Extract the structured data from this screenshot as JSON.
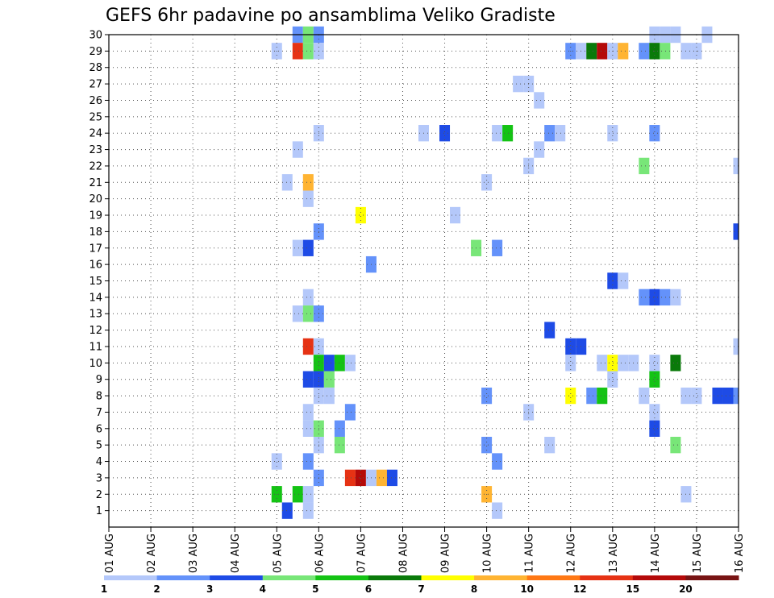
{
  "chart_data": {
    "type": "heatmap",
    "title": "GEFS 6hr padavine po ansamblima Veliko Gradiste",
    "y_ticks": [
      "1",
      "2",
      "3",
      "4",
      "5",
      "6",
      "7",
      "8",
      "9",
      "10",
      "11",
      "12",
      "13",
      "14",
      "15",
      "16",
      "17",
      "18",
      "19",
      "20",
      "21",
      "22",
      "23",
      "24",
      "25",
      "26",
      "27",
      "28",
      "29",
      "30"
    ],
    "x_ticks": [
      "01 AUG",
      "02 AUG",
      "03 AUG",
      "04 AUG",
      "05 AUG",
      "06 AUG",
      "07 AUG",
      "08 AUG",
      "09 AUG",
      "10 AUG",
      "11 AUG",
      "12 AUG",
      "13 AUG",
      "14 AUG",
      "15 AUG",
      "16 AUG"
    ],
    "x_range_days": [
      1,
      16
    ],
    "y_range_members": [
      0,
      30
    ],
    "grid": true,
    "legend_position": "bottom colorbar",
    "colorbar": {
      "tick_labels": [
        "1",
        "2",
        "3",
        "4",
        "5",
        "6",
        "7",
        "8",
        "10",
        "12",
        "15",
        "20"
      ],
      "colors": [
        "#b4c8fa",
        "#6492fa",
        "#1e4be6",
        "#78e678",
        "#14c314",
        "#0a7a0a",
        "#ffff00",
        "#ffb432",
        "#ff7814",
        "#e63214",
        "#b40a0a",
        "#781414"
      ]
    },
    "cells": [
      {
        "member": 30,
        "day": 5.5,
        "level": 2
      },
      {
        "member": 30,
        "day": 5.75,
        "level": 4
      },
      {
        "member": 30,
        "day": 6.0,
        "level": 2
      },
      {
        "member": 30,
        "day": 14.0,
        "level": 1
      },
      {
        "member": 30,
        "day": 14.25,
        "level": 1
      },
      {
        "member": 30,
        "day": 14.5,
        "level": 1
      },
      {
        "member": 30,
        "day": 15.25,
        "level": 1
      },
      {
        "member": 29,
        "day": 5.0,
        "level": 1
      },
      {
        "member": 29,
        "day": 5.5,
        "level": 10
      },
      {
        "member": 29,
        "day": 5.75,
        "level": 4
      },
      {
        "member": 29,
        "day": 6.0,
        "level": 1
      },
      {
        "member": 29,
        "day": 12.0,
        "level": 2
      },
      {
        "member": 29,
        "day": 12.25,
        "level": 1
      },
      {
        "member": 29,
        "day": 12.5,
        "level": 6
      },
      {
        "member": 29,
        "day": 12.75,
        "level": 11
      },
      {
        "member": 29,
        "day": 13.0,
        "level": 1
      },
      {
        "member": 29,
        "day": 13.25,
        "level": 8
      },
      {
        "member": 29,
        "day": 13.75,
        "level": 2
      },
      {
        "member": 29,
        "day": 14.0,
        "level": 6
      },
      {
        "member": 29,
        "day": 14.25,
        "level": 4
      },
      {
        "member": 29,
        "day": 14.75,
        "level": 1
      },
      {
        "member": 29,
        "day": 15.0,
        "level": 1
      },
      {
        "member": 27,
        "day": 10.75,
        "level": 1
      },
      {
        "member": 27,
        "day": 11.0,
        "level": 1
      },
      {
        "member": 26,
        "day": 11.25,
        "level": 1
      },
      {
        "member": 24,
        "day": 6.0,
        "level": 1
      },
      {
        "member": 24,
        "day": 8.5,
        "level": 1
      },
      {
        "member": 24,
        "day": 9.0,
        "level": 3
      },
      {
        "member": 24,
        "day": 10.25,
        "level": 1
      },
      {
        "member": 24,
        "day": 10.5,
        "level": 5
      },
      {
        "member": 24,
        "day": 11.5,
        "level": 2
      },
      {
        "member": 24,
        "day": 11.75,
        "level": 1
      },
      {
        "member": 24,
        "day": 13.0,
        "level": 1
      },
      {
        "member": 24,
        "day": 14.0,
        "level": 2
      },
      {
        "member": 23,
        "day": 5.5,
        "level": 1
      },
      {
        "member": 23,
        "day": 11.25,
        "level": 1
      },
      {
        "member": 22,
        "day": 11.0,
        "level": 1
      },
      {
        "member": 22,
        "day": 13.75,
        "level": 4
      },
      {
        "member": 22,
        "day": 16.0,
        "level": 1
      },
      {
        "member": 21,
        "day": 5.25,
        "level": 1
      },
      {
        "member": 21,
        "day": 5.75,
        "level": 8
      },
      {
        "member": 21,
        "day": 10.0,
        "level": 1
      },
      {
        "member": 20,
        "day": 5.75,
        "level": 1
      },
      {
        "member": 19,
        "day": 7.0,
        "level": 7
      },
      {
        "member": 19,
        "day": 9.25,
        "level": 1
      },
      {
        "member": 18,
        "day": 6.0,
        "level": 2
      },
      {
        "member": 18,
        "day": 16.0,
        "level": 3
      },
      {
        "member": 17,
        "day": 5.5,
        "level": 1
      },
      {
        "member": 17,
        "day": 5.75,
        "level": 3
      },
      {
        "member": 17,
        "day": 9.75,
        "level": 4
      },
      {
        "member": 17,
        "day": 10.25,
        "level": 2
      },
      {
        "member": 16,
        "day": 7.25,
        "level": 2
      },
      {
        "member": 15,
        "day": 13.0,
        "level": 3
      },
      {
        "member": 15,
        "day": 13.25,
        "level": 1
      },
      {
        "member": 14,
        "day": 5.75,
        "level": 1
      },
      {
        "member": 14,
        "day": 13.75,
        "level": 2
      },
      {
        "member": 14,
        "day": 14.0,
        "level": 3
      },
      {
        "member": 14,
        "day": 14.25,
        "level": 2
      },
      {
        "member": 14,
        "day": 14.5,
        "level": 1
      },
      {
        "member": 13,
        "day": 5.5,
        "level": 1
      },
      {
        "member": 13,
        "day": 5.75,
        "level": 4
      },
      {
        "member": 13,
        "day": 6.0,
        "level": 2
      },
      {
        "member": 12,
        "day": 11.5,
        "level": 3
      },
      {
        "member": 11,
        "day": 5.75,
        "level": 10
      },
      {
        "member": 11,
        "day": 6.0,
        "level": 1
      },
      {
        "member": 11,
        "day": 12.0,
        "level": 3
      },
      {
        "member": 11,
        "day": 12.25,
        "level": 3
      },
      {
        "member": 11,
        "day": 16.0,
        "level": 1
      },
      {
        "member": 10,
        "day": 6.0,
        "level": 5
      },
      {
        "member": 10,
        "day": 6.25,
        "level": 3
      },
      {
        "member": 10,
        "day": 6.5,
        "level": 5
      },
      {
        "member": 10,
        "day": 6.75,
        "level": 1
      },
      {
        "member": 10,
        "day": 12.0,
        "level": 1
      },
      {
        "member": 10,
        "day": 12.75,
        "level": 1
      },
      {
        "member": 10,
        "day": 13.0,
        "level": 7
      },
      {
        "member": 10,
        "day": 13.25,
        "level": 1
      },
      {
        "member": 10,
        "day": 13.5,
        "level": 1
      },
      {
        "member": 10,
        "day": 14.0,
        "level": 1
      },
      {
        "member": 10,
        "day": 14.5,
        "level": 6
      },
      {
        "member": 9,
        "day": 5.75,
        "level": 3
      },
      {
        "member": 9,
        "day": 6.0,
        "level": 3
      },
      {
        "member": 9,
        "day": 6.25,
        "level": 4
      },
      {
        "member": 9,
        "day": 13.0,
        "level": 1
      },
      {
        "member": 9,
        "day": 14.0,
        "level": 5
      },
      {
        "member": 8,
        "day": 6.0,
        "level": 1
      },
      {
        "member": 8,
        "day": 6.25,
        "level": 1
      },
      {
        "member": 8,
        "day": 10.0,
        "level": 2
      },
      {
        "member": 8,
        "day": 12.0,
        "level": 7
      },
      {
        "member": 8,
        "day": 12.5,
        "level": 2
      },
      {
        "member": 8,
        "day": 12.75,
        "level": 5
      },
      {
        "member": 8,
        "day": 13.75,
        "level": 1
      },
      {
        "member": 8,
        "day": 14.75,
        "level": 1
      },
      {
        "member": 8,
        "day": 15.0,
        "level": 1
      },
      {
        "member": 8,
        "day": 15.5,
        "level": 3
      },
      {
        "member": 8,
        "day": 15.75,
        "level": 3
      },
      {
        "member": 8,
        "day": 16.0,
        "level": 2
      },
      {
        "member": 7,
        "day": 5.75,
        "level": 1
      },
      {
        "member": 7,
        "day": 6.75,
        "level": 2
      },
      {
        "member": 7,
        "day": 11.0,
        "level": 1
      },
      {
        "member": 7,
        "day": 14.0,
        "level": 1
      },
      {
        "member": 6,
        "day": 5.75,
        "level": 1
      },
      {
        "member": 6,
        "day": 6.0,
        "level": 4
      },
      {
        "member": 6,
        "day": 6.5,
        "level": 2
      },
      {
        "member": 6,
        "day": 14.0,
        "level": 3
      },
      {
        "member": 5,
        "day": 6.0,
        "level": 1
      },
      {
        "member": 5,
        "day": 6.5,
        "level": 4
      },
      {
        "member": 5,
        "day": 10.0,
        "level": 2
      },
      {
        "member": 5,
        "day": 11.5,
        "level": 1
      },
      {
        "member": 5,
        "day": 14.5,
        "level": 4
      },
      {
        "member": 4,
        "day": 5.0,
        "level": 1
      },
      {
        "member": 4,
        "day": 5.75,
        "level": 2
      },
      {
        "member": 4,
        "day": 10.25,
        "level": 2
      },
      {
        "member": 3,
        "day": 6.0,
        "level": 2
      },
      {
        "member": 3,
        "day": 6.75,
        "level": 10
      },
      {
        "member": 3,
        "day": 7.0,
        "level": 11
      },
      {
        "member": 3,
        "day": 7.25,
        "level": 1
      },
      {
        "member": 3,
        "day": 7.5,
        "level": 8
      },
      {
        "member": 3,
        "day": 7.75,
        "level": 3
      },
      {
        "member": 2,
        "day": 5.0,
        "level": 5
      },
      {
        "member": 2,
        "day": 5.5,
        "level": 5
      },
      {
        "member": 2,
        "day": 5.75,
        "level": 1
      },
      {
        "member": 2,
        "day": 10.0,
        "level": 8
      },
      {
        "member": 2,
        "day": 14.75,
        "level": 1
      },
      {
        "member": 1,
        "day": 5.25,
        "level": 3
      },
      {
        "member": 1,
        "day": 5.75,
        "level": 1
      },
      {
        "member": 1,
        "day": 10.25,
        "level": 1
      }
    ]
  }
}
